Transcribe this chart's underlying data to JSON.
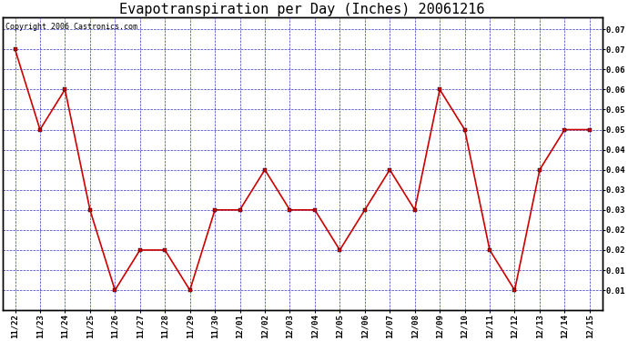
{
  "title": "Evapotranspiration per Day (Inches) 20061216",
  "copyright": "Copyright 2006 Castronics.com",
  "x_labels": [
    "11/22",
    "11/23",
    "11/24",
    "11/25",
    "11/26",
    "11/27",
    "11/28",
    "11/29",
    "11/30",
    "12/01",
    "12/02",
    "12/03",
    "12/04",
    "12/05",
    "12/06",
    "12/07",
    "12/08",
    "12/09",
    "12/10",
    "12/11",
    "12/12",
    "12/13",
    "12/14",
    "12/15"
  ],
  "y_values": [
    0.07,
    0.05,
    0.06,
    0.03,
    0.01,
    0.02,
    0.02,
    0.01,
    0.03,
    0.03,
    0.04,
    0.03,
    0.03,
    0.02,
    0.03,
    0.04,
    0.03,
    0.06,
    0.05,
    0.02,
    0.01,
    0.04,
    0.05,
    0.05
  ],
  "ylim": [
    0.005,
    0.078
  ],
  "line_color": "#cc0000",
  "marker_color": "#000000",
  "grid_color": "#0000bb",
  "background_color": "#ffffff",
  "plot_bg_color": "#ffffff",
  "title_fontsize": 11,
  "axis_label_fontsize": 6.5,
  "copyright_fontsize": 6
}
